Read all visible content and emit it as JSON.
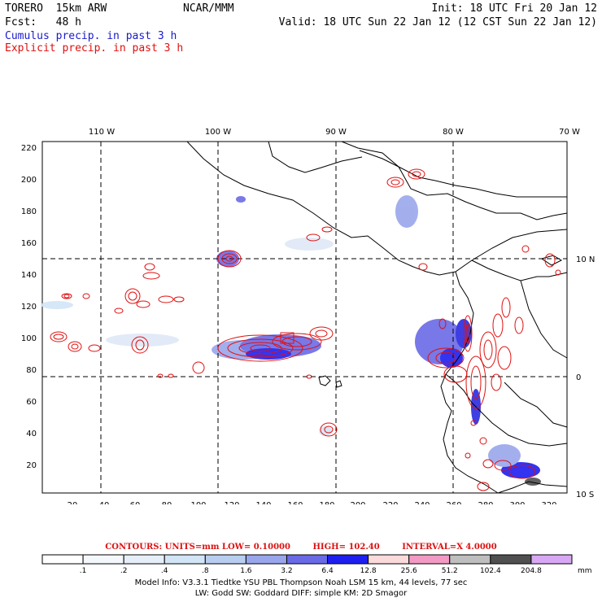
{
  "header": {
    "model": "TORERO  15km ARW",
    "org": "NCAR/MMM",
    "init": "Init: 18 UTC Fri 20 Jan 12",
    "fcst": "Fcst:   48 h",
    "valid": "Valid: 18 UTC Sun 22 Jan 12 (12 CST Sun 22 Jan 12)",
    "legend_cumulus": "Cumulus precip. in past 3 h",
    "legend_explicit": "Explicit precip. in past 3 h"
  },
  "map": {
    "lon_labels": [
      "110 W",
      "100 W",
      "90 W",
      "80 W",
      "70 W"
    ],
    "lat_labels": [
      "10 N",
      "0",
      "10 S"
    ],
    "x_ticks": [
      "20",
      "40",
      "60",
      "80",
      "100",
      "120",
      "140",
      "160",
      "180",
      "200",
      "220",
      "240",
      "260",
      "280",
      "300",
      "320"
    ],
    "y_ticks": [
      "20",
      "40",
      "60",
      "80",
      "100",
      "120",
      "140",
      "160",
      "180",
      "200",
      "220"
    ],
    "colors": {
      "coast": "#000000",
      "grid": "#000000",
      "cumulus": "#2a2ae0",
      "explicit": "#e01010"
    }
  },
  "contours": {
    "units": "CONTOURS:  UNITS=mm  LOW= 0.10000",
    "high": "HIGH=  102.40",
    "interval": "INTERVAL=X  4.0000"
  },
  "colorbar": {
    "labels": [
      ".1",
      ".2",
      ".4",
      ".8",
      "1.6",
      "3.2",
      "6.4",
      "12.8",
      "25.6",
      "51.2",
      "102.4",
      "204.8"
    ],
    "unit": "mm",
    "colors": [
      "#ffffff",
      "#f4f8fc",
      "#e6eefa",
      "#d2e4f6",
      "#b8cef0",
      "#9aa6ec",
      "#6a6ae6",
      "#1e1ef0",
      "#fadada",
      "#f29ac4",
      "#bebebe",
      "#505050",
      "#d8a8f4"
    ]
  },
  "footer": {
    "line1": "Model Info: V3.3.1    Tiedtke YSU PBL   Thompson     Noah LSM  15 km,   44 levels,   77 sec",
    "line2": "LW: Godd SW: Goddard DIFF: simple KM: 2D Smagor"
  }
}
